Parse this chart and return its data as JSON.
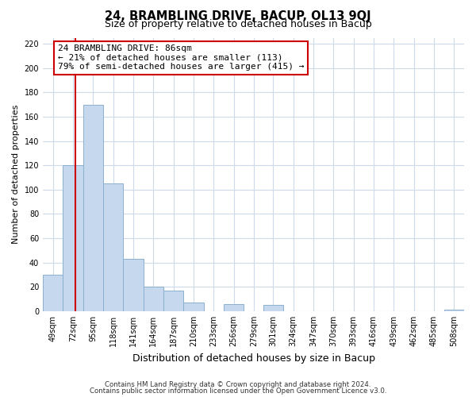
{
  "title": "24, BRAMBLING DRIVE, BACUP, OL13 9QJ",
  "subtitle": "Size of property relative to detached houses in Bacup",
  "xlabel": "Distribution of detached houses by size in Bacup",
  "ylabel": "Number of detached properties",
  "bin_labels": [
    "49sqm",
    "72sqm",
    "95sqm",
    "118sqm",
    "141sqm",
    "164sqm",
    "187sqm",
    "210sqm",
    "233sqm",
    "256sqm",
    "279sqm",
    "301sqm",
    "324sqm",
    "347sqm",
    "370sqm",
    "393sqm",
    "416sqm",
    "439sqm",
    "462sqm",
    "485sqm",
    "508sqm"
  ],
  "bar_heights": [
    30,
    120,
    170,
    105,
    43,
    20,
    17,
    7,
    0,
    6,
    0,
    5,
    0,
    0,
    0,
    0,
    0,
    0,
    0,
    0,
    1
  ],
  "bar_color": "#c5d8ee",
  "bar_edge_color": "#8ab0d0",
  "red_line_x": 86,
  "ylim": [
    0,
    225
  ],
  "yticks": [
    0,
    20,
    40,
    60,
    80,
    100,
    120,
    140,
    160,
    180,
    200,
    220
  ],
  "annotation_text": "24 BRAMBLING DRIVE: 86sqm\n← 21% of detached houses are smaller (113)\n79% of semi-detached houses are larger (415) →",
  "annotation_box_color": "#ffffff",
  "annotation_border_color": "#cc0000",
  "footer_line1": "Contains HM Land Registry data © Crown copyright and database right 2024.",
  "footer_line2": "Contains public sector information licensed under the Open Government Licence v3.0.",
  "background_color": "#ffffff",
  "grid_color": "#cddaea",
  "bin_starts": [
    49,
    72,
    95,
    118,
    141,
    164,
    187,
    210,
    233,
    256,
    279,
    301,
    324,
    347,
    370,
    393,
    416,
    439,
    462,
    485,
    508
  ],
  "bin_width": 23,
  "title_fontsize": 10.5,
  "subtitle_fontsize": 9,
  "ylabel_fontsize": 8,
  "xlabel_fontsize": 9,
  "tick_fontsize": 7,
  "annot_fontsize": 8
}
